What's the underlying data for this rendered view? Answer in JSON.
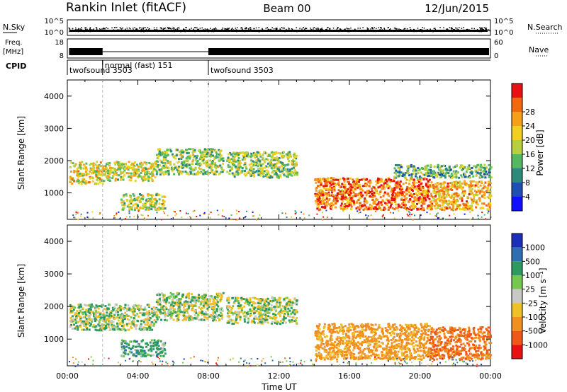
{
  "header": {
    "station": "Rankin Inlet (fitACF)",
    "beam": "Beam 00",
    "date": "12/Jun/2015"
  },
  "noise_panel": {
    "left_label": "N.Sky",
    "right_label": "N.Search",
    "left_ticks": [
      "10^5",
      "10^0"
    ],
    "right_ticks": [
      "10^5",
      "10^0"
    ]
  },
  "freq_panel": {
    "left_label_1": "Freq.",
    "left_label_2": "[MHz]",
    "right_label": "Nave",
    "left_ticks": [
      "18",
      "8"
    ],
    "right_ticks": [
      "60",
      "0"
    ]
  },
  "cpid_panel": {
    "label": "CPID",
    "segments": [
      {
        "label": "twofsound 3503",
        "start_hour": 0.0,
        "end_hour": 2.0
      },
      {
        "label": "normal (fast) 151",
        "start_hour": 2.0,
        "end_hour": 8.0
      },
      {
        "label": "twofsound 3503",
        "start_hour": 8.0,
        "end_hour": 24.0
      }
    ]
  },
  "chart_data": [
    {
      "type": "heatmap",
      "panel": "power",
      "xlabel": "",
      "ylabel": "Slant Range [km]",
      "xlim": [
        0,
        24
      ],
      "ylim": [
        180,
        4500
      ],
      "yticks": [
        1000,
        2000,
        3000,
        4000
      ],
      "colorbar": {
        "label": "Power [dB]",
        "ticks": [
          "4",
          "8",
          "12",
          "16",
          "20",
          "24",
          "28"
        ],
        "colors": [
          "#1010ff",
          "#1f4fb0",
          "#2e8a78",
          "#55b860",
          "#b8d040",
          "#f0d020",
          "#f5a018",
          "#f26a10",
          "#e81010"
        ]
      },
      "regions": [
        {
          "t0": 0.1,
          "t1": 2.0,
          "r0": 1300,
          "r1": 2000,
          "level": 0.62
        },
        {
          "t0": 2.0,
          "t1": 5.0,
          "r0": 1400,
          "r1": 2000,
          "level": 0.55
        },
        {
          "t0": 5.0,
          "t1": 8.8,
          "r0": 1600,
          "r1": 2400,
          "level": 0.45
        },
        {
          "t0": 9.0,
          "t1": 13.0,
          "r0": 1500,
          "r1": 2300,
          "level": 0.45
        },
        {
          "t0": 3.0,
          "t1": 5.5,
          "r0": 500,
          "r1": 1000,
          "level": 0.5
        },
        {
          "t0": 14.0,
          "t1": 20.5,
          "r0": 500,
          "r1": 1500,
          "level": 0.85
        },
        {
          "t0": 20.5,
          "t1": 24.0,
          "r0": 500,
          "r1": 1400,
          "level": 0.7
        },
        {
          "t0": 18.5,
          "t1": 24.0,
          "r0": 1500,
          "r1": 1900,
          "level": 0.35
        }
      ]
    },
    {
      "type": "heatmap",
      "panel": "velocity",
      "xlabel": "Time UT",
      "ylabel": "Slant Range [km]",
      "xlim": [
        0,
        24
      ],
      "ylim": [
        180,
        4500
      ],
      "xticks": [
        "00:00",
        "04:00",
        "08:00",
        "12:00",
        "16:00",
        "20:00",
        "00:00"
      ],
      "yticks": [
        1000,
        2000,
        3000,
        4000
      ],
      "colorbar": {
        "label": "Velocity [m s⁻¹]",
        "ticks": [
          "1000",
          "500",
          "100",
          "25",
          "-25",
          "-100",
          "-500",
          "-1000"
        ],
        "colors": [
          "#1c2fb8",
          "#2d6fb0",
          "#2e9a60",
          "#74c850",
          "#c8c8c4",
          "#f0c028",
          "#f09020",
          "#f05818",
          "#e81010"
        ]
      },
      "regions": [
        {
          "t0": 0.1,
          "t1": 5.0,
          "r0": 1300,
          "r1": 2100,
          "v": 0
        },
        {
          "t0": 5.0,
          "t1": 8.8,
          "r0": 1600,
          "r1": 2450,
          "v": 0
        },
        {
          "t0": 9.0,
          "t1": 13.0,
          "r0": 1500,
          "r1": 2300,
          "v": 0
        },
        {
          "t0": 3.0,
          "t1": 5.5,
          "r0": 500,
          "r1": 1000,
          "v": 150
        },
        {
          "t0": 14.0,
          "t1": 20.5,
          "r0": 400,
          "r1": 1500,
          "v": -350
        },
        {
          "t0": 20.5,
          "t1": 24.0,
          "r0": 400,
          "r1": 1400,
          "v": -700
        }
      ]
    }
  ]
}
